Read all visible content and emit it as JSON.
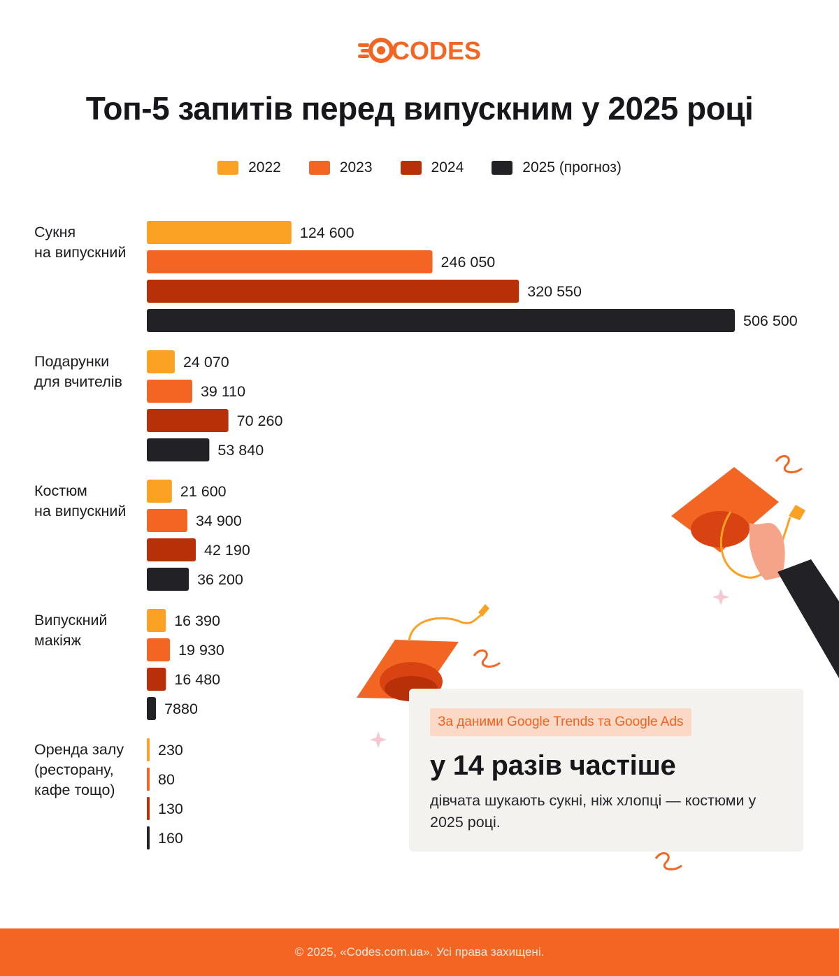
{
  "brand": {
    "logo_text": "CODES",
    "accent": "#f26522"
  },
  "title": "Топ-5 запитів перед випускним у 2025 році",
  "chart_data": {
    "type": "bar",
    "orientation": "horizontal",
    "categories": [
      [
        "Сукня",
        "на випускний"
      ],
      [
        "Подарунки",
        "для вчителів"
      ],
      [
        "Костюм",
        "на випускний"
      ],
      [
        "Випускний",
        "макіяж"
      ],
      [
        "Оренда залу",
        "(ресторану,",
        "кафе тощо)"
      ]
    ],
    "series": [
      {
        "name": "2022",
        "color": "#fba124",
        "values": [
          124600,
          24070,
          21600,
          16390,
          230
        ],
        "labels": [
          "124 600",
          "24 070",
          "21 600",
          "16 390",
          "230"
        ]
      },
      {
        "name": "2023",
        "color": "#f26522",
        "values": [
          246050,
          39110,
          34900,
          19930,
          80
        ],
        "labels": [
          "246 050",
          "39 110",
          "34 900",
          "19 930",
          "80"
        ]
      },
      {
        "name": "2024",
        "color": "#b83008",
        "values": [
          320550,
          70260,
          42190,
          16480,
          130
        ],
        "labels": [
          "320 550",
          "70 260",
          "42 190",
          "16 480",
          "130"
        ]
      },
      {
        "name": "2025 (прогноз)",
        "color": "#222226",
        "values": [
          506500,
          53840,
          36200,
          7880,
          160
        ],
        "labels": [
          "506 500",
          "53 840",
          "36 200",
          "7880",
          "160"
        ]
      }
    ],
    "xlim": [
      0,
      506500
    ],
    "grid": false,
    "legend_position": "top-center",
    "value_labels": true
  },
  "callout": {
    "tag": "За даними Google Trends та Google Ads",
    "headline": "у 14 разів частіше",
    "text": "дівчата шукають сукні, ніж хлопці — костюми у 2025 році."
  },
  "footer": "© 2025, «Codes.com.ua». Усі права захищені."
}
